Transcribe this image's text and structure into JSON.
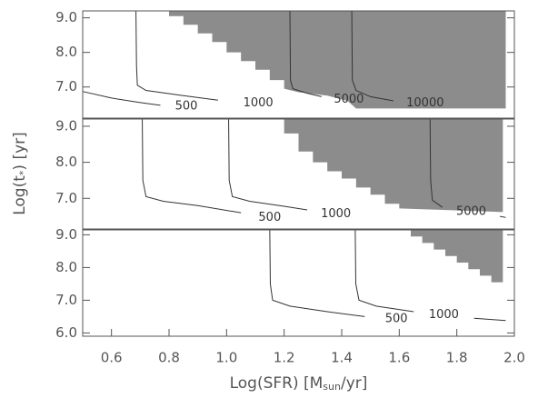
{
  "chart_data": [
    {
      "type": "contour",
      "xlim": [
        0.5,
        2.0
      ],
      "ylim": [
        6.1,
        9.2
      ],
      "yticks": [
        {
          "value": 7,
          "label": "7.0"
        },
        {
          "value": 8,
          "label": "8.0"
        },
        {
          "value": 9,
          "label": "9.0"
        }
      ],
      "line_color": "#333333",
      "shaded_region": {
        "color": "#8c8c8c",
        "x": [
          0.8,
          1.97,
          1.97,
          1.45,
          1.42,
          1.35,
          1.25,
          1.2,
          1.2,
          1.15,
          1.15,
          1.1,
          1.1,
          1.05,
          1.05,
          1.0,
          1.0,
          0.95,
          0.95,
          0.9,
          0.9,
          0.85,
          0.85,
          0.8
        ],
        "y": [
          9.2,
          9.2,
          6.38,
          6.38,
          6.6,
          6.75,
          6.85,
          6.95,
          7.2,
          7.2,
          7.5,
          7.5,
          7.75,
          7.75,
          8.0,
          8.0,
          8.3,
          8.3,
          8.55,
          8.55,
          8.8,
          8.8,
          9.05,
          9.05
        ]
      },
      "contours": [
        {
          "name": "500",
          "x": [
            0.5,
            0.6,
            0.7,
            0.77,
            0.9,
            0.95
          ],
          "y": [
            6.87,
            6.68,
            6.55,
            6.47,
            null,
            6.4
          ]
        },
        {
          "name": "1000",
          "x": [
            0.685,
            0.687,
            0.69,
            0.72,
            0.85,
            0.97,
            1.15,
            1.25
          ],
          "y": [
            9.2,
            7.6,
            7.05,
            6.9,
            6.75,
            6.62,
            null,
            6.45
          ]
        },
        {
          "name": "5000",
          "x": [
            1.22,
            1.222,
            1.23,
            1.28,
            1.33,
            1.47,
            1.52
          ],
          "y": [
            9.2,
            7.2,
            6.95,
            6.82,
            6.72,
            null,
            6.55
          ]
        },
        {
          "name": "10000",
          "x": [
            1.435,
            1.437,
            1.45,
            1.5,
            1.58,
            1.75,
            1.8
          ],
          "y": [
            9.2,
            7.2,
            6.9,
            6.72,
            6.6,
            null,
            6.48
          ]
        }
      ]
    },
    {
      "type": "contour",
      "xlim": [
        0.5,
        2.0
      ],
      "ylim": [
        6.15,
        9.2
      ],
      "yticks": [
        {
          "value": 7,
          "label": "7.0"
        },
        {
          "value": 8,
          "label": "8.0"
        },
        {
          "value": 9,
          "label": "9.0"
        }
      ],
      "ylabel": [
        "Log(t",
        "*",
        ") [yr]"
      ],
      "line_color": "#333333",
      "shaded_region": {
        "color": "#8c8c8c",
        "x": [
          1.2,
          1.96,
          1.96,
          1.6,
          1.6,
          1.55,
          1.55,
          1.5,
          1.5,
          1.45,
          1.45,
          1.4,
          1.4,
          1.35,
          1.35,
          1.3,
          1.3,
          1.25,
          1.25,
          1.2
        ],
        "y": [
          9.2,
          9.2,
          6.62,
          6.72,
          6.85,
          6.85,
          7.1,
          7.1,
          7.3,
          7.3,
          7.55,
          7.55,
          7.75,
          7.75,
          8.0,
          8.0,
          8.3,
          8.3,
          8.8,
          8.8
        ]
      },
      "contours": [
        {
          "name": "500",
          "x": [
            0.707,
            0.709,
            0.72,
            0.78,
            0.9,
            1.05,
            1.14,
            1.25
          ],
          "y": [
            9.2,
            7.5,
            7.05,
            6.92,
            6.8,
            6.6,
            null,
            6.32
          ]
        },
        {
          "name": "1000",
          "x": [
            1.007,
            1.009,
            1.02,
            1.08,
            1.2,
            1.28,
            1.4,
            1.48
          ],
          "y": [
            9.2,
            7.5,
            7.05,
            6.92,
            6.78,
            6.68,
            null,
            6.45
          ]
        },
        {
          "name": "5000",
          "x": [
            1.707,
            1.709,
            1.715,
            1.75,
            1.85,
            1.95,
            1.97
          ],
          "y": [
            9.2,
            7.5,
            6.95,
            6.75,
            null,
            6.5,
            6.47
          ]
        }
      ]
    },
    {
      "type": "contour",
      "xlim": [
        0.5,
        2.0
      ],
      "ylim": [
        5.9,
        9.15
      ],
      "yticks": [
        {
          "value": 6,
          "label": "6.0"
        },
        {
          "value": 7,
          "label": "7.0"
        },
        {
          "value": 8,
          "label": "8.0"
        },
        {
          "value": 9,
          "label": "9.0"
        }
      ],
      "xticks": [
        0.6,
        0.8,
        {
          "value": 1,
          "label": "1.0"
        },
        1.2,
        1.4,
        1.6,
        1.8,
        {
          "value": 2,
          "label": "2.0"
        }
      ],
      "xlabel": [
        "Log(SFR) [M",
        "sun",
        "/yr]"
      ],
      "line_color": "#333333",
      "shaded_region": {
        "color": "#8c8c8c",
        "x": [
          1.64,
          1.96,
          1.96,
          1.92,
          1.92,
          1.88,
          1.88,
          1.84,
          1.84,
          1.8,
          1.8,
          1.76,
          1.76,
          1.72,
          1.72,
          1.68,
          1.68,
          1.64
        ],
        "y": [
          9.15,
          9.15,
          7.55,
          7.55,
          7.75,
          7.75,
          7.95,
          7.95,
          8.15,
          8.15,
          8.35,
          8.35,
          8.55,
          8.55,
          8.75,
          8.75,
          8.95,
          8.95
        ]
      },
      "contours": [
        {
          "name": "500",
          "x": [
            1.15,
            1.152,
            1.16,
            1.22,
            1.35,
            1.48,
            1.6,
            1.7
          ],
          "y": [
            9.15,
            7.5,
            7.0,
            6.82,
            6.65,
            6.5,
            null,
            6.35
          ]
        },
        {
          "name": "1000",
          "x": [
            1.447,
            1.449,
            1.46,
            1.52,
            1.65,
            1.72,
            1.86,
            1.97
          ],
          "y": [
            9.15,
            7.5,
            7.0,
            6.82,
            6.65,
            null,
            6.45,
            6.38
          ]
        }
      ]
    }
  ]
}
